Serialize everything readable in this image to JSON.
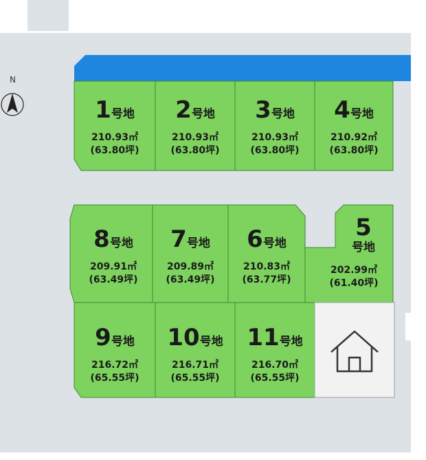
{
  "compass": {
    "label": "N"
  },
  "lots": [
    {
      "id": "1",
      "num": "1",
      "suffix": "号地",
      "area": "210.93㎡",
      "tsubo": "(63.80坪)"
    },
    {
      "id": "2",
      "num": "2",
      "suffix": "号地",
      "area": "210.93㎡",
      "tsubo": "(63.80坪)"
    },
    {
      "id": "3",
      "num": "3",
      "suffix": "号地",
      "area": "210.93㎡",
      "tsubo": "(63.80坪)"
    },
    {
      "id": "4",
      "num": "4",
      "suffix": "号地",
      "area": "210.92㎡",
      "tsubo": "(63.80坪)"
    },
    {
      "id": "5",
      "num": "5",
      "suffix": "号地",
      "area": "202.99㎡",
      "tsubo": "(61.40坪)"
    },
    {
      "id": "6",
      "num": "6",
      "suffix": "号地",
      "area": "210.83㎡",
      "tsubo": "(63.77坪)"
    },
    {
      "id": "7",
      "num": "7",
      "suffix": "号地",
      "area": "209.89㎡",
      "tsubo": "(63.49坪)"
    },
    {
      "id": "8",
      "num": "8",
      "suffix": "号地",
      "area": "209.91㎡",
      "tsubo": "(63.49坪)"
    },
    {
      "id": "9",
      "num": "9",
      "suffix": "号地",
      "area": "216.72㎡",
      "tsubo": "(65.55坪)"
    },
    {
      "id": "10",
      "num": "10",
      "suffix": "号地",
      "area": "216.71㎡",
      "tsubo": "(65.55坪)"
    },
    {
      "id": "11",
      "num": "11",
      "suffix": "号地",
      "area": "216.70㎡",
      "tsubo": "(65.55坪)"
    }
  ],
  "existing_house": {
    "icon": "house-icon"
  },
  "colors": {
    "lot": "#7ed35f",
    "lot_border": "#3f8a32",
    "road": "#dde2e6",
    "waterway": "#1f86e0",
    "house_lot": "#f2f2f2"
  }
}
